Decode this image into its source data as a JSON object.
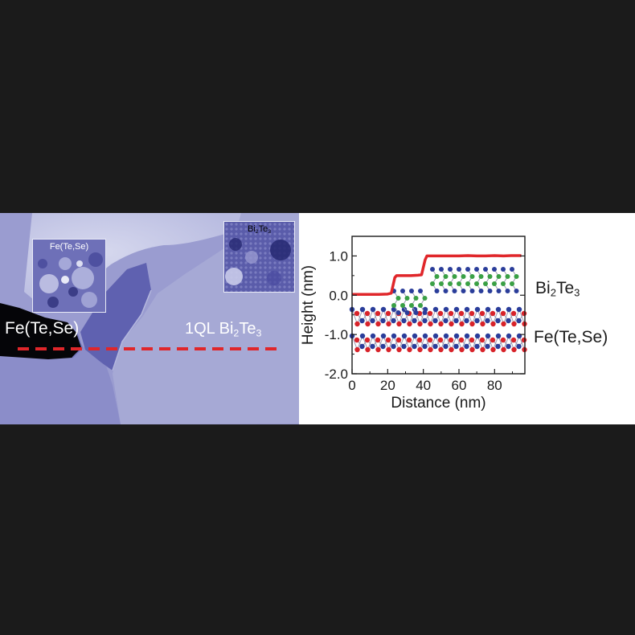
{
  "stm_image": {
    "left_region": {
      "text": "Fe(Te,Se)"
    },
    "right_region": {
      "base": "1QL Bi",
      "sub1": "2",
      "mid": "Te",
      "sub2": "3"
    },
    "inset_fets": {
      "text": "Fe(Te,Se)"
    },
    "inset_bite": {
      "base": "Bi",
      "sub1": "2",
      "mid": "Te",
      "sub2": "3"
    },
    "linecut_color": "#e0262a"
  },
  "side_labels": {
    "bite": {
      "base": "Bi",
      "sub1": "2",
      "mid": "Te",
      "sub2": "3"
    },
    "fets": {
      "text": "Fe(Te,Se)"
    }
  },
  "atom_colors": {
    "blue": "#2a3d9a",
    "red": "#d8232a",
    "green": "#3aa045"
  },
  "chart_data": {
    "type": "line",
    "xlabel": "Distance (nm)",
    "ylabel": "Height (nm)",
    "xlim": [
      0,
      97
    ],
    "ylim": [
      -2.0,
      1.5
    ],
    "xticks": [
      0,
      20,
      40,
      60,
      80
    ],
    "yticks": [
      1.0,
      0.0,
      -1.0,
      -2.0
    ],
    "ytick_labels": [
      "1.0",
      "0.0",
      "-1.0",
      "-2.0"
    ],
    "series": [
      {
        "color": "#e0262a",
        "x": [
          0,
          5,
          10,
          15,
          20,
          22,
          24,
          25,
          27,
          30,
          33,
          37,
          39,
          41,
          42,
          44,
          50,
          55,
          60,
          65,
          70,
          75,
          80,
          85,
          90,
          95
        ],
        "y": [
          0.02,
          0.02,
          0.02,
          0.02,
          0.03,
          0.05,
          0.45,
          0.5,
          0.5,
          0.5,
          0.5,
          0.51,
          0.52,
          0.9,
          1.0,
          1.0,
          1.0,
          1.0,
          1.0,
          1.01,
          1.0,
          1.0,
          1.01,
          1.0,
          1.01,
          1.01
        ]
      }
    ]
  }
}
